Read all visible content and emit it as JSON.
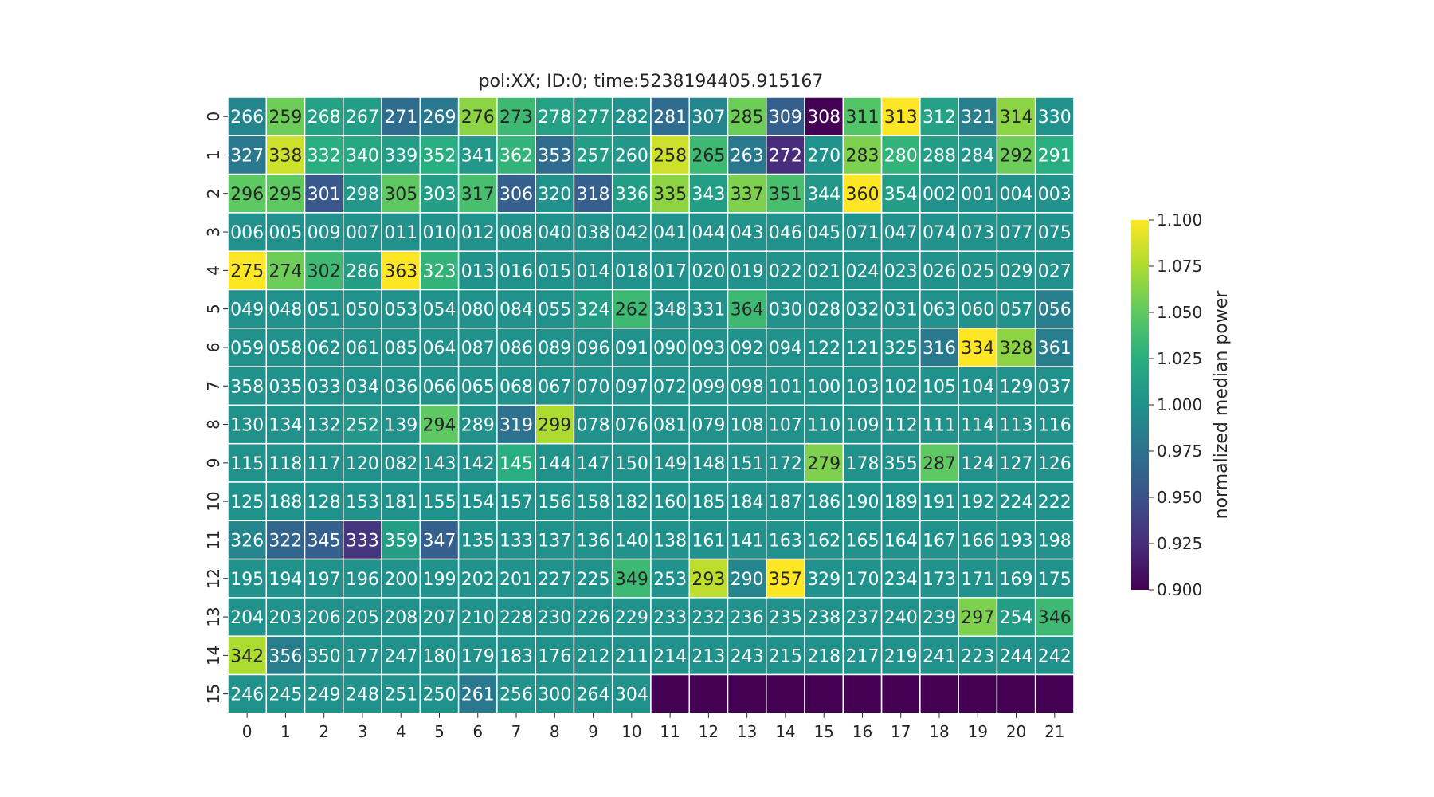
{
  "chart_data": {
    "type": "heatmap",
    "title": "pol:XX; ID:0; time:5238194405.915167",
    "xlabel": "",
    "ylabel": "",
    "x_ticks": [
      "0",
      "1",
      "2",
      "3",
      "4",
      "5",
      "6",
      "7",
      "8",
      "9",
      "10",
      "11",
      "12",
      "13",
      "14",
      "15",
      "16",
      "17",
      "18",
      "19",
      "20",
      "21"
    ],
    "y_ticks": [
      "0",
      "1",
      "2",
      "3",
      "4",
      "5",
      "6",
      "7",
      "8",
      "9",
      "10",
      "11",
      "12",
      "13",
      "14",
      "15"
    ],
    "colorbar": {
      "label": "normalized median power",
      "range": [
        0.9,
        1.1
      ],
      "ticks": [
        "0.900",
        "0.925",
        "0.950",
        "0.975",
        "1.000",
        "1.025",
        "1.050",
        "1.075",
        "1.100"
      ],
      "colormap": "viridis"
    },
    "missing_color": "#440154",
    "cell_labels": [
      [
        "266",
        "259",
        "268",
        "267",
        "271",
        "269",
        "276",
        "273",
        "278",
        "277",
        "282",
        "281",
        "307",
        "285",
        "309",
        "308",
        "311",
        "313",
        "312",
        "321",
        "314",
        "330"
      ],
      [
        "327",
        "338",
        "332",
        "340",
        "339",
        "352",
        "341",
        "362",
        "353",
        "257",
        "260",
        "258",
        "265",
        "263",
        "272",
        "270",
        "283",
        "280",
        "288",
        "284",
        "292",
        "291"
      ],
      [
        "296",
        "295",
        "301",
        "298",
        "305",
        "303",
        "317",
        "306",
        "320",
        "318",
        "336",
        "335",
        "343",
        "337",
        "351",
        "344",
        "360",
        "354",
        "002",
        "001",
        "004",
        "003"
      ],
      [
        "006",
        "005",
        "009",
        "007",
        "011",
        "010",
        "012",
        "008",
        "040",
        "038",
        "042",
        "041",
        "044",
        "043",
        "046",
        "045",
        "071",
        "047",
        "074",
        "073",
        "077",
        "075"
      ],
      [
        "275",
        "274",
        "302",
        "286",
        "363",
        "323",
        "013",
        "016",
        "015",
        "014",
        "018",
        "017",
        "020",
        "019",
        "022",
        "021",
        "024",
        "023",
        "026",
        "025",
        "029",
        "027"
      ],
      [
        "049",
        "048",
        "051",
        "050",
        "053",
        "054",
        "080",
        "084",
        "055",
        "324",
        "262",
        "348",
        "331",
        "364",
        "030",
        "028",
        "032",
        "031",
        "063",
        "060",
        "057",
        "056"
      ],
      [
        "059",
        "058",
        "062",
        "061",
        "085",
        "064",
        "087",
        "086",
        "089",
        "096",
        "091",
        "090",
        "093",
        "092",
        "094",
        "122",
        "121",
        "325",
        "316",
        "334",
        "328",
        "361"
      ],
      [
        "358",
        "035",
        "033",
        "034",
        "036",
        "066",
        "065",
        "068",
        "067",
        "070",
        "097",
        "072",
        "099",
        "098",
        "101",
        "100",
        "103",
        "102",
        "105",
        "104",
        "129",
        "037"
      ],
      [
        "130",
        "134",
        "132",
        "252",
        "139",
        "294",
        "289",
        "319",
        "299",
        "078",
        "076",
        "081",
        "079",
        "108",
        "107",
        "110",
        "109",
        "112",
        "111",
        "114",
        "113",
        "116"
      ],
      [
        "115",
        "118",
        "117",
        "120",
        "082",
        "143",
        "142",
        "145",
        "144",
        "147",
        "150",
        "149",
        "148",
        "151",
        "172",
        "279",
        "178",
        "355",
        "287",
        "124",
        "127",
        "126"
      ],
      [
        "125",
        "188",
        "128",
        "153",
        "181",
        "155",
        "154",
        "157",
        "156",
        "158",
        "182",
        "160",
        "185",
        "184",
        "187",
        "186",
        "190",
        "189",
        "191",
        "192",
        "224",
        "222"
      ],
      [
        "326",
        "322",
        "345",
        "333",
        "359",
        "347",
        "135",
        "133",
        "137",
        "136",
        "140",
        "138",
        "161",
        "141",
        "163",
        "162",
        "165",
        "164",
        "167",
        "166",
        "193",
        "198"
      ],
      [
        "195",
        "194",
        "197",
        "196",
        "200",
        "199",
        "202",
        "201",
        "227",
        "225",
        "349",
        "253",
        "293",
        "290",
        "357",
        "329",
        "170",
        "234",
        "173",
        "171",
        "169",
        "175"
      ],
      [
        "204",
        "203",
        "206",
        "205",
        "208",
        "207",
        "210",
        "228",
        "230",
        "226",
        "229",
        "233",
        "232",
        "236",
        "235",
        "238",
        "237",
        "240",
        "239",
        "297",
        "254",
        "346"
      ],
      [
        "342",
        "356",
        "350",
        "177",
        "247",
        "180",
        "179",
        "183",
        "176",
        "212",
        "211",
        "214",
        "213",
        "243",
        "215",
        "218",
        "217",
        "219",
        "241",
        "223",
        "244",
        "242"
      ],
      [
        "246",
        "245",
        "249",
        "248",
        "251",
        "250",
        "261",
        "256",
        "300",
        "264",
        "304",
        "",
        "",
        "",
        "",
        "",
        "",
        "",
        "",
        "",
        "",
        ""
      ]
    ],
    "values": [
      [
        0.99,
        1.055,
        1.015,
        1.01,
        0.97,
        0.98,
        1.065,
        1.035,
        1.015,
        1.01,
        1.0,
        0.97,
        0.99,
        1.055,
        0.96,
        0.9,
        1.045,
        1.1,
        1.015,
        0.985,
        1.065,
        1.0
      ],
      [
        0.98,
        1.085,
        1.025,
        1.02,
        1.01,
        1.025,
        1.005,
        1.03,
        0.97,
        1.01,
        1.005,
        1.085,
        1.035,
        0.98,
        0.925,
        1.0,
        1.06,
        1.03,
        1.01,
        1.005,
        1.055,
        1.025
      ],
      [
        1.05,
        1.05,
        0.955,
        1.005,
        1.05,
        1.01,
        1.04,
        0.96,
        1.0,
        0.96,
        1.01,
        1.065,
        1.01,
        1.06,
        1.04,
        1.005,
        1.1,
        1.01,
        1.0,
        1.0,
        1.0,
        1.0
      ],
      [
        1.0,
        1.0,
        1.0,
        1.0,
        1.0,
        1.0,
        1.0,
        1.0,
        1.0,
        1.0,
        1.0,
        1.0,
        1.0,
        1.0,
        1.0,
        1.0,
        1.0,
        1.0,
        1.0,
        1.0,
        1.0,
        1.0
      ],
      [
        1.1,
        1.055,
        1.035,
        1.01,
        1.1,
        1.03,
        1.0,
        1.0,
        1.0,
        1.0,
        1.0,
        1.0,
        1.0,
        1.0,
        1.0,
        1.0,
        1.0,
        1.0,
        1.0,
        1.0,
        1.0,
        1.0
      ],
      [
        1.0,
        1.0,
        1.0,
        1.0,
        1.0,
        1.0,
        1.0,
        1.0,
        1.0,
        1.01,
        1.035,
        1.0,
        1.0,
        1.035,
        1.0,
        1.0,
        1.0,
        1.0,
        1.0,
        1.0,
        1.0,
        0.985
      ],
      [
        1.0,
        1.0,
        1.0,
        1.0,
        1.0,
        1.0,
        1.0,
        1.0,
        1.0,
        1.0,
        1.0,
        1.0,
        1.0,
        1.0,
        1.0,
        1.0,
        1.0,
        1.0,
        0.98,
        1.1,
        1.065,
        0.985
      ],
      [
        1.0,
        1.0,
        1.0,
        1.0,
        1.0,
        1.0,
        1.0,
        1.0,
        1.0,
        1.0,
        1.0,
        1.0,
        1.0,
        1.0,
        1.0,
        1.0,
        1.0,
        1.0,
        1.0,
        1.0,
        1.0,
        1.0
      ],
      [
        1.0,
        1.0,
        1.0,
        1.005,
        1.0,
        1.05,
        1.0,
        0.975,
        1.075,
        1.0,
        1.0,
        1.0,
        1.0,
        1.0,
        1.0,
        1.0,
        1.0,
        1.0,
        1.0,
        1.0,
        1.0,
        1.0
      ],
      [
        1.0,
        1.0,
        1.0,
        1.0,
        1.0,
        1.0,
        1.0,
        1.025,
        1.0,
        1.0,
        1.0,
        1.0,
        1.0,
        1.0,
        1.0,
        1.06,
        1.0,
        1.0,
        1.05,
        1.0,
        1.0,
        1.0
      ],
      [
        1.0,
        1.0,
        1.0,
        1.0,
        1.0,
        1.0,
        1.0,
        1.0,
        1.0,
        1.0,
        1.0,
        1.0,
        1.0,
        1.0,
        1.0,
        1.0,
        1.0,
        1.0,
        1.0,
        1.0,
        1.0,
        1.0
      ],
      [
        0.99,
        0.965,
        0.96,
        0.93,
        1.01,
        0.96,
        1.0,
        1.0,
        1.0,
        1.0,
        1.0,
        1.0,
        1.0,
        1.0,
        1.0,
        1.0,
        1.0,
        1.0,
        1.0,
        1.0,
        1.0,
        1.0
      ],
      [
        1.0,
        1.0,
        1.0,
        1.0,
        1.0,
        1.0,
        1.0,
        1.0,
        1.0,
        1.0,
        1.035,
        1.0,
        1.08,
        0.99,
        1.1,
        1.0,
        1.0,
        1.0,
        1.0,
        1.0,
        1.0,
        1.0
      ],
      [
        1.0,
        1.0,
        1.0,
        1.0,
        1.0,
        1.0,
        1.0,
        1.0,
        1.0,
        1.0,
        1.0,
        1.0,
        1.0,
        1.0,
        1.0,
        1.0,
        1.0,
        1.0,
        1.0,
        1.06,
        1.01,
        1.035
      ],
      [
        1.075,
        0.985,
        1.0,
        1.0,
        1.0,
        1.0,
        1.0,
        1.0,
        1.0,
        1.0,
        1.0,
        1.0,
        1.0,
        1.0,
        1.0,
        1.0,
        1.0,
        1.0,
        1.0,
        1.0,
        1.0,
        1.0
      ],
      [
        1.0,
        1.0,
        1.0,
        1.0,
        1.0,
        1.0,
        0.98,
        1.0,
        1.0,
        1.0,
        1.0,
        null,
        null,
        null,
        null,
        null,
        null,
        null,
        null,
        null,
        null,
        null
      ]
    ]
  }
}
